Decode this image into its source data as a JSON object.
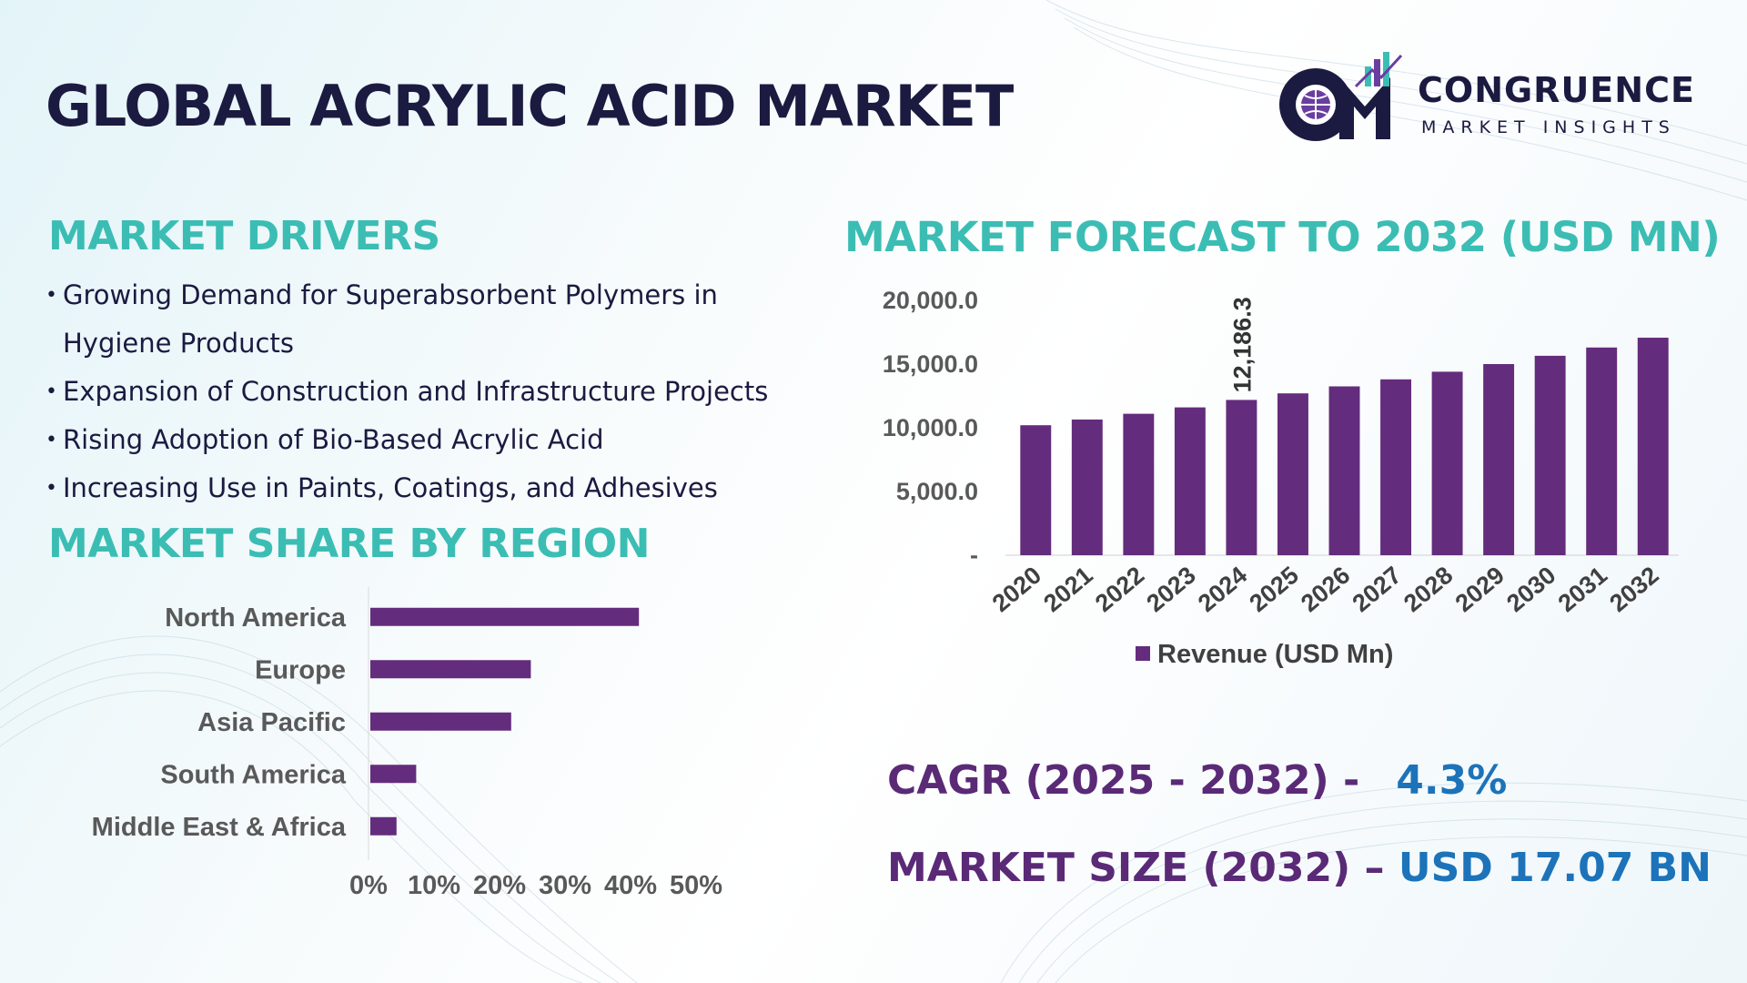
{
  "title": "GLOBAL ACRYLIC ACID MARKET",
  "logo": {
    "name": "CONGRUENCE",
    "tagline": "MARKET INSIGHTS"
  },
  "drivers": {
    "heading": "MARKET DRIVERS",
    "items": [
      "Growing Demand for Superabsorbent Polymers in Hygiene Products",
      "Expansion of Construction and Infrastructure Projects",
      "Rising Adoption of Bio-Based Acrylic Acid",
      "Increasing Use in Paints, Coatings, and Adhesives"
    ]
  },
  "forecast_heading": "MARKET FORECAST TO 2032 (USD MN)",
  "region_heading": "MARKET SHARE BY REGION",
  "kpis": {
    "cagr_label": "CAGR (2025 - 2032) -",
    "cagr_value": "4.3%",
    "size_label": "MARKET SIZE (2032) –",
    "size_value": "USD 17.07 BN"
  },
  "colors": {
    "bar": "#642c7c",
    "heading": "#3bbdb4",
    "title": "#1b1a40",
    "kpi_label": "#5a2a77",
    "kpi_value": "#1c73b9"
  },
  "chart_data": [
    {
      "type": "bar",
      "categories": [
        "2020",
        "2021",
        "2022",
        "2023",
        "2024",
        "2025",
        "2026",
        "2027",
        "2028",
        "2029",
        "2030",
        "2031",
        "2032"
      ],
      "series": [
        {
          "name": "Revenue (USD Mn)",
          "values": [
            10200,
            10650,
            11100,
            11600,
            12186.3,
            12700,
            13250,
            13800,
            14400,
            15000,
            15650,
            16300,
            17070
          ]
        }
      ],
      "y_ticks": [
        "-",
        "5,000.0",
        "10,000.0",
        "15,000.0",
        "20,000.0"
      ],
      "ylim": [
        0,
        20000
      ],
      "annotations": [
        {
          "category": "2024",
          "text": "12,186.3"
        }
      ],
      "legend": "bottom",
      "grid": false
    },
    {
      "type": "bar",
      "orientation": "horizontal",
      "categories": [
        "North America",
        "Europe",
        "Asia Pacific",
        "South America",
        "Middle East & Africa"
      ],
      "values": [
        41,
        24.5,
        21.5,
        7,
        4
      ],
      "x_ticks": [
        "0%",
        "10%",
        "20%",
        "30%",
        "40%",
        "50%"
      ],
      "xlim": [
        0,
        50
      ],
      "grid": false
    }
  ]
}
